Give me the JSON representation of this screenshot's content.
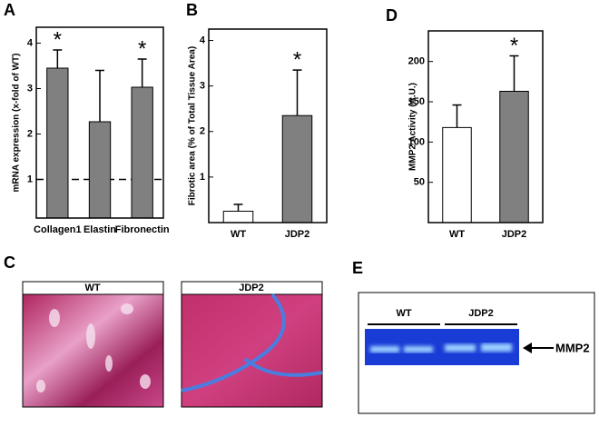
{
  "chart_data": [
    {
      "type": "bar",
      "panel": "A",
      "ylabel": "mRNA expression (x-fold of WT)",
      "categories": [
        "Collagen1",
        "Elastin",
        "Fibronectin"
      ],
      "values": [
        3.45,
        2.27,
        3.03
      ],
      "errors": [
        0.4,
        1.13,
        0.62
      ],
      "colors": [
        "#808080",
        "#808080",
        "#808080"
      ],
      "significance": [
        "*",
        null,
        "*"
      ],
      "reference_line": 1,
      "ylim": [
        0.15,
        4.35
      ],
      "yticks": [
        1,
        2,
        3,
        4
      ]
    },
    {
      "type": "bar",
      "panel": "B",
      "ylabel": "Fibrotic area (% of Total Tissue Area)",
      "categories": [
        "WT",
        "JDP2"
      ],
      "values": [
        0.25,
        2.35
      ],
      "errors": [
        0.15,
        1.0
      ],
      "colors": [
        "#ffffff",
        "#808080"
      ],
      "significance": [
        null,
        "*"
      ],
      "ylim": [
        0,
        4.25
      ],
      "yticks": [
        1,
        2,
        3,
        4
      ]
    },
    {
      "type": "bar",
      "panel": "D",
      "ylabel": "MMP2 Activity (A.U.)",
      "categories": [
        "WT",
        "JDP2"
      ],
      "values": [
        118,
        163
      ],
      "errors": [
        28,
        44
      ],
      "colors": [
        "#ffffff",
        "#808080"
      ],
      "significance": [
        null,
        "*"
      ],
      "ylim": [
        0,
        238
      ],
      "yticks": [
        50,
        100,
        150,
        200
      ]
    }
  ],
  "panels": {
    "C": {
      "letter": "C",
      "titles": [
        "WT",
        "JDP2"
      ]
    },
    "E": {
      "letter": "E",
      "lanes": [
        "WT",
        "JDP2"
      ],
      "band": "MMP2"
    }
  }
}
